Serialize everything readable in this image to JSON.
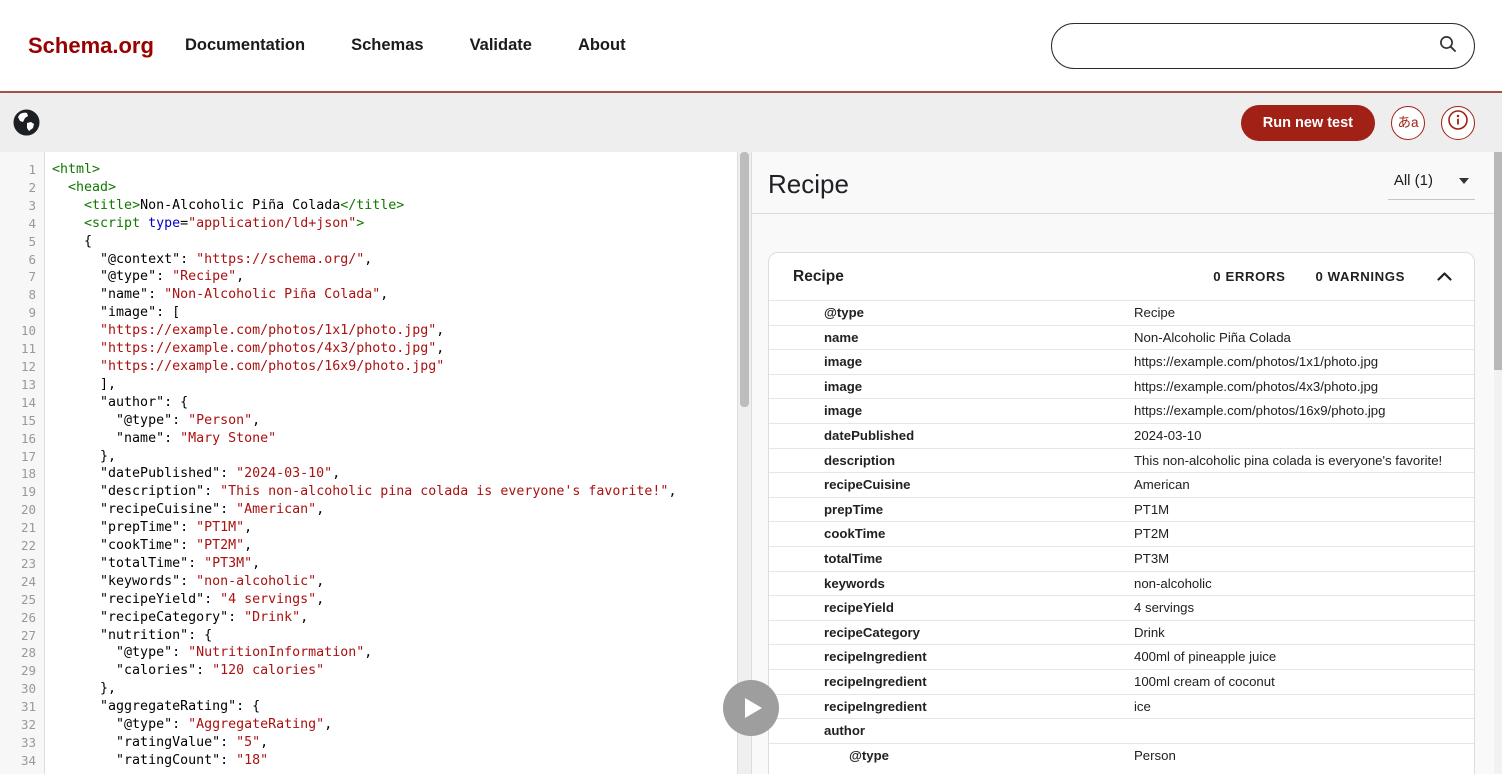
{
  "header": {
    "logo": "Schema.org",
    "nav": [
      {
        "label": "Documentation"
      },
      {
        "label": "Schemas"
      },
      {
        "label": "Validate"
      },
      {
        "label": "About"
      }
    ],
    "search_value": ""
  },
  "toolbar": {
    "run_button_label": "Run new test",
    "language_icon_glyph": "あa"
  },
  "colors": {
    "logo_red": "#990000",
    "header_rule": "#a8544b",
    "button_red": "#a12117",
    "syntax_tag_green": "#117700",
    "syntax_attr_blue": "#0000cc",
    "syntax_string_red": "#aa1111",
    "panel_bg": "#f9f9f9"
  },
  "editor": {
    "lines": [
      {
        "n": 1,
        "s": [
          [
            "tag",
            "<html>"
          ]
        ]
      },
      {
        "n": 2,
        "s": [
          [
            "plain",
            "  "
          ],
          [
            "tag",
            "<head>"
          ]
        ]
      },
      {
        "n": 3,
        "s": [
          [
            "plain",
            "    "
          ],
          [
            "tag",
            "<title>"
          ],
          [
            "plain",
            "Non-Alcoholic Piña Colada"
          ],
          [
            "tag",
            "</title>"
          ]
        ]
      },
      {
        "n": 4,
        "s": [
          [
            "plain",
            "    "
          ],
          [
            "tag",
            "<script "
          ],
          [
            "attr",
            "type"
          ],
          [
            "plain",
            "="
          ],
          [
            "str",
            "\"application/ld+json\""
          ],
          [
            "tag",
            ">"
          ]
        ]
      },
      {
        "n": 5,
        "s": [
          [
            "plain",
            "    {"
          ]
        ]
      },
      {
        "n": 6,
        "s": [
          [
            "plain",
            "      \"@context\": "
          ],
          [
            "str",
            "\"https://schema.org/\""
          ],
          [
            "plain",
            ","
          ]
        ]
      },
      {
        "n": 7,
        "s": [
          [
            "plain",
            "      \"@type\": "
          ],
          [
            "str",
            "\"Recipe\""
          ],
          [
            "plain",
            ","
          ]
        ]
      },
      {
        "n": 8,
        "s": [
          [
            "plain",
            "      \"name\": "
          ],
          [
            "str",
            "\"Non-Alcoholic Piña Colada\""
          ],
          [
            "plain",
            ","
          ]
        ]
      },
      {
        "n": 9,
        "s": [
          [
            "plain",
            "      \"image\": ["
          ]
        ]
      },
      {
        "n": 10,
        "s": [
          [
            "plain",
            "      "
          ],
          [
            "str",
            "\"https://example.com/photos/1x1/photo.jpg\""
          ],
          [
            "plain",
            ","
          ]
        ]
      },
      {
        "n": 11,
        "s": [
          [
            "plain",
            "      "
          ],
          [
            "str",
            "\"https://example.com/photos/4x3/photo.jpg\""
          ],
          [
            "plain",
            ","
          ]
        ]
      },
      {
        "n": 12,
        "s": [
          [
            "plain",
            "      "
          ],
          [
            "str",
            "\"https://example.com/photos/16x9/photo.jpg\""
          ]
        ]
      },
      {
        "n": 13,
        "s": [
          [
            "plain",
            "      ],"
          ]
        ]
      },
      {
        "n": 14,
        "s": [
          [
            "plain",
            "      \"author\": {"
          ]
        ]
      },
      {
        "n": 15,
        "s": [
          [
            "plain",
            "        \"@type\": "
          ],
          [
            "str",
            "\"Person\""
          ],
          [
            "plain",
            ","
          ]
        ]
      },
      {
        "n": 16,
        "s": [
          [
            "plain",
            "        \"name\": "
          ],
          [
            "str",
            "\"Mary Stone\""
          ]
        ]
      },
      {
        "n": 17,
        "s": [
          [
            "plain",
            "      },"
          ]
        ]
      },
      {
        "n": 18,
        "s": [
          [
            "plain",
            "      \"datePublished\": "
          ],
          [
            "str",
            "\"2024-03-10\""
          ],
          [
            "plain",
            ","
          ]
        ]
      },
      {
        "n": 19,
        "s": [
          [
            "plain",
            "      \"description\": "
          ],
          [
            "str",
            "\"This non-alcoholic pina colada is everyone's favorite!\""
          ],
          [
            "plain",
            ","
          ]
        ]
      },
      {
        "n": 20,
        "s": [
          [
            "plain",
            "      \"recipeCuisine\": "
          ],
          [
            "str",
            "\"American\""
          ],
          [
            "plain",
            ","
          ]
        ]
      },
      {
        "n": 21,
        "s": [
          [
            "plain",
            "      \"prepTime\": "
          ],
          [
            "str",
            "\"PT1M\""
          ],
          [
            "plain",
            ","
          ]
        ]
      },
      {
        "n": 22,
        "s": [
          [
            "plain",
            "      \"cookTime\": "
          ],
          [
            "str",
            "\"PT2M\""
          ],
          [
            "plain",
            ","
          ]
        ]
      },
      {
        "n": 23,
        "s": [
          [
            "plain",
            "      \"totalTime\": "
          ],
          [
            "str",
            "\"PT3M\""
          ],
          [
            "plain",
            ","
          ]
        ]
      },
      {
        "n": 24,
        "s": [
          [
            "plain",
            "      \"keywords\": "
          ],
          [
            "str",
            "\"non-alcoholic\""
          ],
          [
            "plain",
            ","
          ]
        ]
      },
      {
        "n": 25,
        "s": [
          [
            "plain",
            "      \"recipeYield\": "
          ],
          [
            "str",
            "\"4 servings\""
          ],
          [
            "plain",
            ","
          ]
        ]
      },
      {
        "n": 26,
        "s": [
          [
            "plain",
            "      \"recipeCategory\": "
          ],
          [
            "str",
            "\"Drink\""
          ],
          [
            "plain",
            ","
          ]
        ]
      },
      {
        "n": 27,
        "s": [
          [
            "plain",
            "      \"nutrition\": {"
          ]
        ]
      },
      {
        "n": 28,
        "s": [
          [
            "plain",
            "        \"@type\": "
          ],
          [
            "str",
            "\"NutritionInformation\""
          ],
          [
            "plain",
            ","
          ]
        ]
      },
      {
        "n": 29,
        "s": [
          [
            "plain",
            "        \"calories\": "
          ],
          [
            "str",
            "\"120 calories\""
          ]
        ]
      },
      {
        "n": 30,
        "s": [
          [
            "plain",
            "      },"
          ]
        ]
      },
      {
        "n": 31,
        "s": [
          [
            "plain",
            "      \"aggregateRating\": {"
          ]
        ]
      },
      {
        "n": 32,
        "s": [
          [
            "plain",
            "        \"@type\": "
          ],
          [
            "str",
            "\"AggregateRating\""
          ],
          [
            "plain",
            ","
          ]
        ]
      },
      {
        "n": 33,
        "s": [
          [
            "plain",
            "        \"ratingValue\": "
          ],
          [
            "str",
            "\"5\""
          ],
          [
            "plain",
            ","
          ]
        ]
      },
      {
        "n": 34,
        "s": [
          [
            "plain",
            "        \"ratingCount\": "
          ],
          [
            "str",
            "\"18\""
          ]
        ]
      }
    ]
  },
  "results": {
    "entity_title": "Recipe",
    "filter_label": "All (1)",
    "card": {
      "title": "Recipe",
      "errors_label": "0 ERRORS",
      "warnings_label": "0 WARNINGS"
    },
    "rows": [
      {
        "indent": 1,
        "name": "@type",
        "value": "Recipe"
      },
      {
        "indent": 1,
        "name": "name",
        "value": "Non-Alcoholic Piña Colada"
      },
      {
        "indent": 1,
        "name": "image",
        "value": "https://example.com/photos/1x1/photo.jpg"
      },
      {
        "indent": 1,
        "name": "image",
        "value": "https://example.com/photos/4x3/photo.jpg"
      },
      {
        "indent": 1,
        "name": "image",
        "value": "https://example.com/photos/16x9/photo.jpg"
      },
      {
        "indent": 1,
        "name": "datePublished",
        "value": "2024-03-10"
      },
      {
        "indent": 1,
        "name": "description",
        "value": "This non-alcoholic pina colada is everyone's favorite!"
      },
      {
        "indent": 1,
        "name": "recipeCuisine",
        "value": "American"
      },
      {
        "indent": 1,
        "name": "prepTime",
        "value": "PT1M"
      },
      {
        "indent": 1,
        "name": "cookTime",
        "value": "PT2M"
      },
      {
        "indent": 1,
        "name": "totalTime",
        "value": "PT3M"
      },
      {
        "indent": 1,
        "name": "keywords",
        "value": "non-alcoholic"
      },
      {
        "indent": 1,
        "name": "recipeYield",
        "value": "4 servings"
      },
      {
        "indent": 1,
        "name": "recipeCategory",
        "value": "Drink"
      },
      {
        "indent": 1,
        "name": "recipeIngredient",
        "value": "400ml of pineapple juice"
      },
      {
        "indent": 1,
        "name": "recipeIngredient",
        "value": "100ml cream of coconut"
      },
      {
        "indent": 1,
        "name": "recipeIngredient",
        "value": "ice"
      },
      {
        "indent": 1,
        "name": "author",
        "value": ""
      },
      {
        "indent": 2,
        "name": "@type",
        "value": "Person"
      }
    ]
  }
}
